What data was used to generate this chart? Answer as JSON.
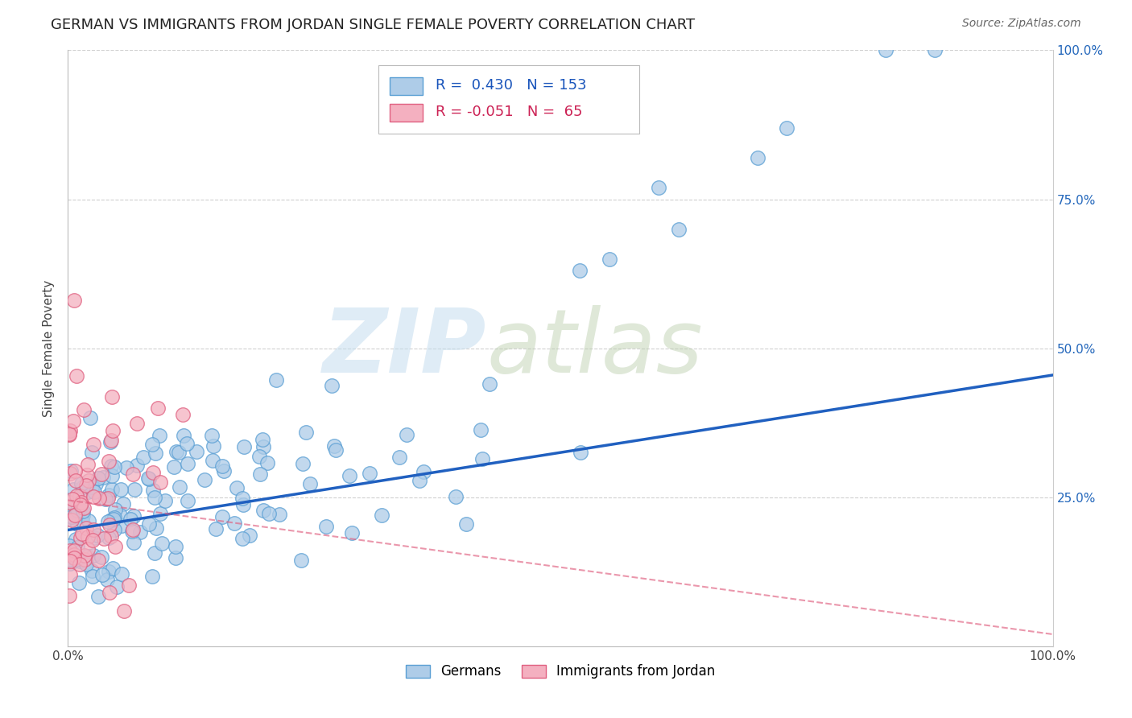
{
  "title": "GERMAN VS IMMIGRANTS FROM JORDAN SINGLE FEMALE POVERTY CORRELATION CHART",
  "source": "Source: ZipAtlas.com",
  "ylabel": "Single Female Poverty",
  "xlim": [
    0,
    1
  ],
  "ylim": [
    0,
    1
  ],
  "xtick_positions": [
    0.0,
    0.25,
    0.5,
    0.75,
    1.0
  ],
  "xticklabels": [
    "0.0%",
    "",
    "",
    "",
    "100.0%"
  ],
  "ytick_positions": [
    0.0,
    0.25,
    0.5,
    0.75,
    1.0
  ],
  "yticklabels_right": [
    "",
    "25.0%",
    "50.0%",
    "75.0%",
    "100.0%"
  ],
  "german_color_face": "#aecce8",
  "german_color_edge": "#5a9fd4",
  "jordan_color_face": "#f4b0c0",
  "jordan_color_edge": "#e06080",
  "german_R": 0.43,
  "german_N": 153,
  "jordan_R": -0.051,
  "jordan_N": 65,
  "legend_label_german": "Germans",
  "legend_label_jordan": "Immigrants from Jordan",
  "trendline_german_color": "#2060c0",
  "trendline_jordan_color": "#e06080",
  "trendline_german_x0": 0.0,
  "trendline_german_y0": 0.195,
  "trendline_german_x1": 1.0,
  "trendline_german_y1": 0.455,
  "trendline_jordan_x0": 0.0,
  "trendline_jordan_y0": 0.245,
  "trendline_jordan_x1": 1.0,
  "trendline_jordan_y1": 0.02,
  "grid_color": "#d0d0d0",
  "background_color": "#ffffff",
  "watermark_zip_color": "#c8ddf0",
  "watermark_atlas_color": "#b8c8a0",
  "title_fontsize": 13,
  "source_fontsize": 10,
  "axis_fontsize": 11,
  "legend_fontsize": 13,
  "seed_german": 42,
  "seed_jordan": 99
}
